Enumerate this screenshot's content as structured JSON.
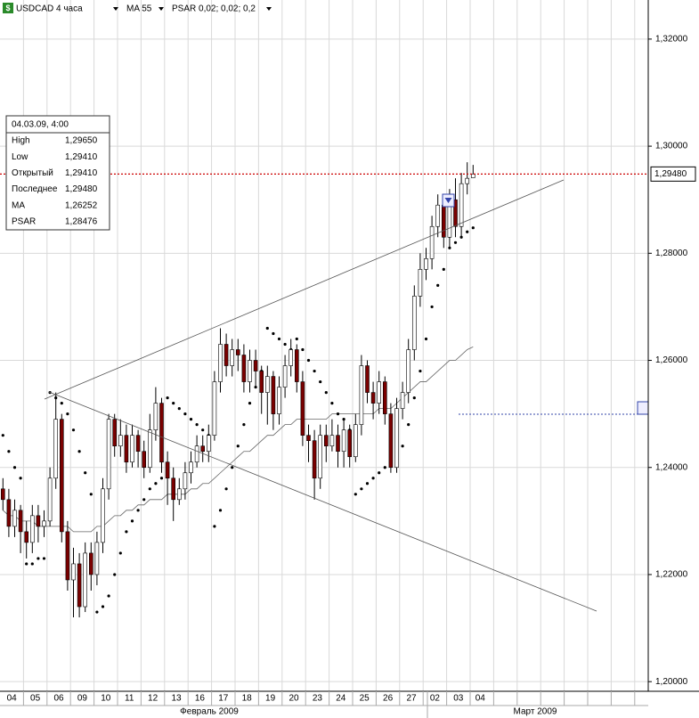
{
  "header": {
    "symbol": "USDCAD 4 часа",
    "indicators": [
      "MA 55",
      "PSAR 0,02; 0,02; 0,2"
    ]
  },
  "info": {
    "date": "04.03.09, 4:00",
    "rows": [
      [
        "High",
        "1,29650"
      ],
      [
        "Low",
        "1,29410"
      ],
      [
        "Открытый",
        "1,29410"
      ],
      [
        "Последнее",
        "1,29480"
      ],
      [
        "MA",
        "1,26252"
      ],
      [
        "PSAR",
        "1,28476"
      ]
    ]
  },
  "chart_data": {
    "type": "candlestick",
    "categories": [
      null,
      "04",
      null,
      null,
      null,
      "05",
      null,
      null,
      null,
      "06",
      null,
      null,
      null,
      "09",
      null,
      null,
      null,
      "10",
      null,
      null,
      null,
      "11",
      null,
      null,
      null,
      "12",
      null,
      null,
      null,
      "13",
      null,
      null,
      null,
      "16",
      null,
      null,
      null,
      "17",
      null,
      null,
      null,
      "18",
      null,
      null,
      null,
      "19",
      null,
      null,
      null,
      "20",
      null,
      null,
      null,
      "23",
      null,
      null,
      null,
      "24",
      null,
      null,
      null,
      "25",
      null,
      null,
      null,
      "26",
      null,
      null,
      null,
      "27",
      null,
      null,
      null,
      "02",
      null,
      null,
      null,
      "03",
      null,
      null,
      "04"
    ],
    "open": [
      1.236,
      1.234,
      1.229,
      1.232,
      1.228,
      1.226,
      1.231,
      1.229,
      1.23,
      1.238,
      1.249,
      1.228,
      1.219,
      1.222,
      1.214,
      1.224,
      1.22,
      1.226,
      1.236,
      1.249,
      1.244,
      1.246,
      1.241,
      1.246,
      1.243,
      1.24,
      1.247,
      1.252,
      1.241,
      1.238,
      1.234,
      1.236,
      1.239,
      1.241,
      1.244,
      1.243,
      1.246,
      1.256,
      1.263,
      1.259,
      1.262,
      1.261,
      1.256,
      1.26,
      1.258,
      1.254,
      1.257,
      1.25,
      1.255,
      1.259,
      1.262,
      1.256,
      1.246,
      1.245,
      1.238,
      1.246,
      1.244,
      1.246,
      1.243,
      1.247,
      1.242,
      1.248,
      1.259,
      1.254,
      1.252,
      1.256,
      1.25,
      1.24,
      1.251,
      1.254,
      1.262,
      1.272,
      1.277,
      1.279,
      1.285,
      1.289,
      1.283,
      1.29,
      1.285,
      1.293,
      1.2941
    ],
    "close": [
      1.234,
      1.229,
      1.232,
      1.228,
      1.226,
      1.231,
      1.229,
      1.23,
      1.238,
      1.249,
      1.228,
      1.219,
      1.222,
      1.214,
      1.224,
      1.22,
      1.226,
      1.236,
      1.249,
      1.244,
      1.246,
      1.241,
      1.246,
      1.243,
      1.24,
      1.247,
      1.252,
      1.241,
      1.238,
      1.234,
      1.236,
      1.239,
      1.241,
      1.244,
      1.243,
      1.246,
      1.256,
      1.263,
      1.259,
      1.262,
      1.261,
      1.256,
      1.26,
      1.258,
      1.254,
      1.257,
      1.25,
      1.255,
      1.259,
      1.262,
      1.256,
      1.246,
      1.245,
      1.238,
      1.246,
      1.244,
      1.246,
      1.243,
      1.247,
      1.242,
      1.248,
      1.259,
      1.254,
      1.252,
      1.256,
      1.25,
      1.24,
      1.251,
      1.254,
      1.262,
      1.272,
      1.277,
      1.279,
      1.285,
      1.289,
      1.283,
      1.29,
      1.285,
      1.293,
      1.294,
      1.2948
    ],
    "high": [
      1.238,
      1.236,
      1.234,
      1.233,
      1.23,
      1.233,
      1.233,
      1.232,
      1.24,
      1.254,
      1.25,
      1.23,
      1.225,
      1.224,
      1.226,
      1.226,
      1.228,
      1.238,
      1.25,
      1.25,
      1.249,
      1.248,
      1.248,
      1.247,
      1.245,
      1.25,
      1.255,
      1.253,
      1.243,
      1.24,
      1.238,
      1.241,
      1.243,
      1.246,
      1.246,
      1.248,
      1.258,
      1.266,
      1.265,
      1.264,
      1.264,
      1.263,
      1.262,
      1.262,
      1.259,
      1.259,
      1.258,
      1.257,
      1.261,
      1.264,
      1.263,
      1.258,
      1.248,
      1.247,
      1.248,
      1.248,
      1.249,
      1.248,
      1.249,
      1.248,
      1.25,
      1.261,
      1.26,
      1.256,
      1.258,
      1.257,
      1.252,
      1.253,
      1.256,
      1.264,
      1.274,
      1.28,
      1.281,
      1.287,
      1.291,
      1.29,
      1.292,
      1.294,
      1.295,
      1.297,
      1.2965
    ],
    "low": [
      1.232,
      1.227,
      1.227,
      1.224,
      1.223,
      1.224,
      1.226,
      1.227,
      1.229,
      1.236,
      1.226,
      1.217,
      1.212,
      1.212,
      1.213,
      1.217,
      1.218,
      1.224,
      1.234,
      1.242,
      1.242,
      1.239,
      1.24,
      1.24,
      1.238,
      1.239,
      1.245,
      1.239,
      1.233,
      1.23,
      1.233,
      1.234,
      1.237,
      1.24,
      1.241,
      1.241,
      1.245,
      1.254,
      1.257,
      1.257,
      1.258,
      1.254,
      1.254,
      1.255,
      1.25,
      1.248,
      1.247,
      1.248,
      1.253,
      1.257,
      1.254,
      1.244,
      1.241,
      1.234,
      1.236,
      1.241,
      1.243,
      1.24,
      1.24,
      1.24,
      1.241,
      1.246,
      1.252,
      1.249,
      1.25,
      1.248,
      1.239,
      1.239,
      1.249,
      1.252,
      1.26,
      1.27,
      1.275,
      1.277,
      1.283,
      1.281,
      1.281,
      1.283,
      1.283,
      1.291,
      1.2941
    ],
    "up_color": "#ffffff",
    "down_color": "#7a0000",
    "series": [
      {
        "name": "MA",
        "color": "#666666",
        "style": "line",
        "values": [
          1.232,
          1.231,
          1.231,
          1.23,
          1.23,
          1.23,
          1.229,
          1.229,
          1.229,
          1.229,
          1.229,
          1.229,
          1.228,
          1.228,
          1.228,
          1.228,
          1.229,
          1.229,
          1.23,
          1.231,
          1.231,
          1.232,
          1.232,
          1.233,
          1.233,
          1.234,
          1.234,
          1.234,
          1.235,
          1.235,
          1.235,
          1.235,
          1.236,
          1.236,
          1.237,
          1.237,
          1.238,
          1.239,
          1.24,
          1.241,
          1.242,
          1.243,
          1.243,
          1.244,
          1.245,
          1.246,
          1.246,
          1.247,
          1.248,
          1.248,
          1.249,
          1.249,
          1.249,
          1.249,
          1.249,
          1.249,
          1.25,
          1.25,
          1.25,
          1.25,
          1.25,
          1.25,
          1.25,
          1.25,
          1.251,
          1.251,
          1.251,
          1.252,
          1.253,
          1.254,
          1.255,
          1.256,
          1.256,
          1.257,
          1.258,
          1.259,
          1.26,
          1.26,
          1.261,
          1.262,
          1.26252
        ]
      },
      {
        "name": "PSAR",
        "color": "#000000",
        "style": "dots",
        "values": [
          1.246,
          1.243,
          1.24,
          1.238,
          1.222,
          1.222,
          1.223,
          1.223,
          1.254,
          1.253,
          1.252,
          1.25,
          1.247,
          1.243,
          1.239,
          1.235,
          1.213,
          1.214,
          1.216,
          1.22,
          1.224,
          1.228,
          1.23,
          1.232,
          1.234,
          1.236,
          1.237,
          1.238,
          1.253,
          1.252,
          1.251,
          1.25,
          1.249,
          1.248,
          1.247,
          1.246,
          1.229,
          1.232,
          1.236,
          1.24,
          1.244,
          1.248,
          1.252,
          1.255,
          1.258,
          1.266,
          1.265,
          1.264,
          1.263,
          1.262,
          1.264,
          1.262,
          1.26,
          1.258,
          1.256,
          1.254,
          1.252,
          1.25,
          1.249,
          1.247,
          1.235,
          1.236,
          1.237,
          1.238,
          1.239,
          1.24,
          1.241,
          1.242,
          1.244,
          1.248,
          1.253,
          1.258,
          1.264,
          1.27,
          1.274,
          1.277,
          1.281,
          1.282,
          1.283,
          1.284,
          1.28476
        ]
      }
    ],
    "ylim": [
      1.1982,
      1.3273
    ],
    "yticks": [
      {
        "value": 1.32,
        "label": "1,32000"
      },
      {
        "value": 1.3,
        "label": "1,30000"
      },
      {
        "value": 1.28,
        "label": "1,28000"
      },
      {
        "value": 1.26,
        "label": "1,26000"
      },
      {
        "value": 1.24,
        "label": "1,24000"
      },
      {
        "value": 1.22,
        "label": "1,22000"
      },
      {
        "value": 1.2,
        "label": "1,20000"
      }
    ],
    "grid": true,
    "last_price": {
      "value": 1.2948,
      "label": "1,29480",
      "color": "#cc0000"
    },
    "months": [
      "Февраль 2009",
      "Март 2009"
    ]
  }
}
